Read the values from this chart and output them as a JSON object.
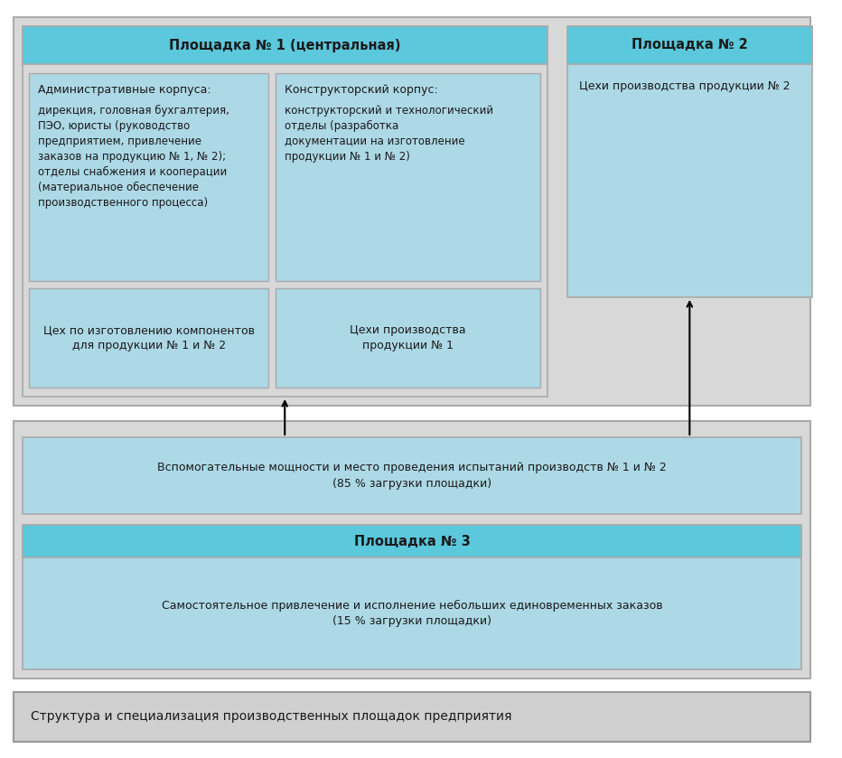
{
  "header_blue": "#5bc8dc",
  "light_blue": "#add8e6",
  "gray_bg": "#d8d8d8",
  "white": "#ffffff",
  "caption_bg": "#d0d0d0",
  "title_bottom": "Структура и специализация производственных площадок предприятия",
  "site1_header": "Площадка № 1 (центральная)",
  "site2_header": "Площадка № 2",
  "site2_body": "Цехи производства продукции № 2",
  "box_admin_title": "Административные корпуса:",
  "box_admin_body": "дирекция, головная бухгалтерия,\nПЭО, юристы (руководство\nпредприятием, привлечение\nзаказов на продукцию № 1, № 2);\nотделы снабжения и кооперации\n(материальное обеспечение\nпроизводственного процесса)",
  "box_constr_title": "Конструкторский корпус:",
  "box_constr_body": "конструкторский и технологический\nотделы (разработка\nдокументации на изготовление\nпродукции № 1 и № 2)",
  "box_workshop1": "Цех по изготовлению компонентов\nдля продукции № 1 и № 2",
  "box_workshop2": "Цехи производства\nпродукции № 1",
  "aux_text": "Вспомогательные мощности и место проведения испытаний производств № 1 и № 2\n(85 % загрузки площадки)",
  "site3_header": "Площадка № 3",
  "site3_body": "Самостоятельное привлечение и исполнение небольших единовременных заказов\n(15 % загрузки площадки)"
}
